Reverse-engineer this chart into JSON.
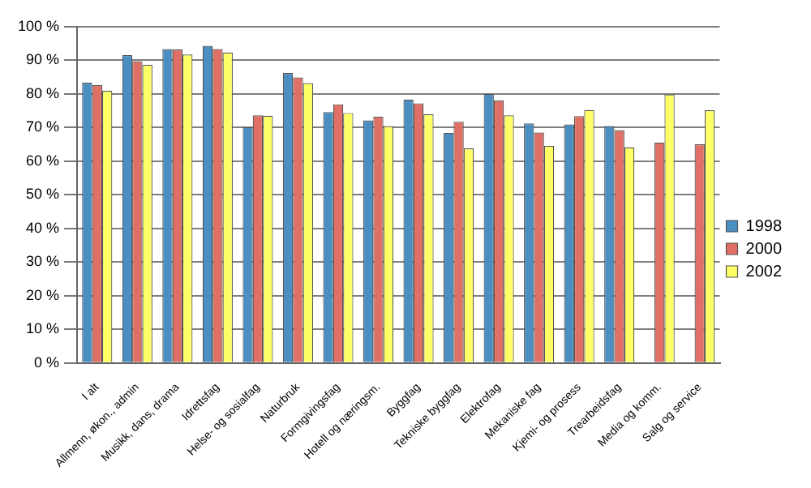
{
  "chart_data": {
    "type": "bar",
    "categories": [
      "I alt",
      "Allmenn, økon., admin",
      "Musikk, dans, drama",
      "Idrettsfag",
      "Helse- og sosialfag",
      "Naturbruk",
      "Formgivingsfag",
      "Hotell og næringsm.",
      "Byggfag",
      "Tekniske byggfag",
      "Elektrofag",
      "Mekaniske fag",
      "Kjemi- og prosess",
      "Trearbeidsfag",
      "Media og komm.",
      "Salg og service"
    ],
    "series": [
      {
        "name": "1998",
        "color": "#4a8ec2",
        "values": [
          83.3,
          91.5,
          93.3,
          94.3,
          70.1,
          86.2,
          74.6,
          72.1,
          78.3,
          68.4,
          80,
          71.2,
          70.9,
          70.4,
          null,
          null
        ]
      },
      {
        "name": "2000",
        "color": "#e07066",
        "values": [
          82.6,
          89.7,
          93.2,
          93.3,
          73.6,
          84.9,
          76.9,
          73.2,
          77.2,
          71.7,
          78,
          68.5,
          73.4,
          69.2,
          65.5,
          65
        ]
      },
      {
        "name": "2002",
        "color": "#ffff66",
        "values": [
          80.9,
          88.6,
          91.7,
          92.3,
          73.5,
          83.2,
          74.3,
          70.4,
          73.9,
          63.8,
          73.6,
          64.5,
          75.2,
          64.1,
          79.8,
          75.1
        ]
      }
    ],
    "ylim": [
      0,
      100
    ],
    "yticks": [
      {
        "value": 0,
        "label": "0 %"
      },
      {
        "value": 10,
        "label": "10 %"
      },
      {
        "value": 20,
        "label": "20 %"
      },
      {
        "value": 30,
        "label": "30 %"
      },
      {
        "value": 40,
        "label": "40 %"
      },
      {
        "value": 50,
        "label": "50 %"
      },
      {
        "value": 60,
        "label": "60 %"
      },
      {
        "value": 70,
        "label": "70 %"
      },
      {
        "value": 80,
        "label": "80 %"
      },
      {
        "value": 90,
        "label": "90 %"
      },
      {
        "value": 100,
        "label": "100 %"
      }
    ],
    "grid": "y",
    "legend": "right"
  }
}
